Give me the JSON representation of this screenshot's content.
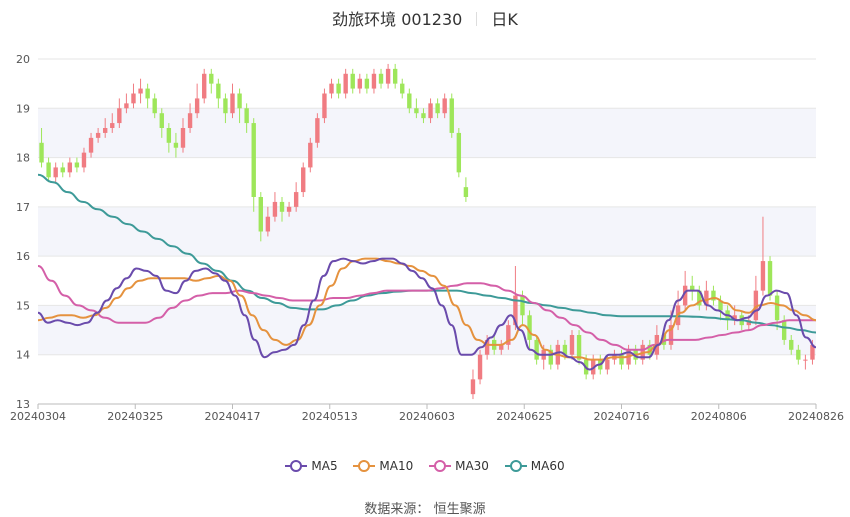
{
  "title": {
    "name": "劲旅环境 001230",
    "period": "日K"
  },
  "source": {
    "label": "数据来源：",
    "value": "恒生聚源"
  },
  "chart_data": {
    "type": "candlestick",
    "ylim": [
      13,
      20
    ],
    "yticks": [
      13,
      14,
      15,
      16,
      17,
      18,
      19,
      20
    ],
    "xticks": [
      "20240304",
      "20240325",
      "20240417",
      "20240513",
      "20240603",
      "20240625",
      "20240716",
      "20240806",
      "20240826"
    ],
    "colors": {
      "up": "#f07c82",
      "down": "#9ee65a",
      "ma5": "#6a4bac",
      "ma10": "#e5923e",
      "ma30": "#d45fa8",
      "ma60": "#3d9a98"
    },
    "legend": [
      "MA5",
      "MA10",
      "MA30",
      "MA60"
    ],
    "candles": [
      [
        18.3,
        17.9,
        18.6,
        17.8
      ],
      [
        17.9,
        17.6,
        18.0,
        17.5
      ],
      [
        17.6,
        17.8,
        17.9,
        17.5
      ],
      [
        17.8,
        17.7,
        17.9,
        17.6
      ],
      [
        17.7,
        17.9,
        18.0,
        17.6
      ],
      [
        17.9,
        17.8,
        18.0,
        17.7
      ],
      [
        17.8,
        18.1,
        18.2,
        17.7
      ],
      [
        18.1,
        18.4,
        18.5,
        18.0
      ],
      [
        18.4,
        18.5,
        18.6,
        18.3
      ],
      [
        18.5,
        18.6,
        18.8,
        18.4
      ],
      [
        18.6,
        18.7,
        18.9,
        18.5
      ],
      [
        18.7,
        19.0,
        19.2,
        18.6
      ],
      [
        19.0,
        19.1,
        19.3,
        18.9
      ],
      [
        19.1,
        19.3,
        19.5,
        19.0
      ],
      [
        19.3,
        19.4,
        19.6,
        19.1
      ],
      [
        19.4,
        19.2,
        19.5,
        19.0
      ],
      [
        19.2,
        18.9,
        19.3,
        18.8
      ],
      [
        18.9,
        18.6,
        19.0,
        18.4
      ],
      [
        18.6,
        18.3,
        18.7,
        18.1
      ],
      [
        18.3,
        18.2,
        18.5,
        18.0
      ],
      [
        18.2,
        18.6,
        18.8,
        18.1
      ],
      [
        18.6,
        18.9,
        19.1,
        18.5
      ],
      [
        18.9,
        19.2,
        19.5,
        18.8
      ],
      [
        19.2,
        19.7,
        19.8,
        19.1
      ],
      [
        19.7,
        19.5,
        19.8,
        19.3
      ],
      [
        19.5,
        19.2,
        19.6,
        19.0
      ],
      [
        19.2,
        18.9,
        19.3,
        18.7
      ],
      [
        18.9,
        19.3,
        19.5,
        18.8
      ],
      [
        19.3,
        19.0,
        19.4,
        18.7
      ],
      [
        19.0,
        18.7,
        19.1,
        18.5
      ],
      [
        18.7,
        17.2,
        18.8,
        16.9
      ],
      [
        17.2,
        16.5,
        17.3,
        16.3
      ],
      [
        16.5,
        16.8,
        17.0,
        16.4
      ],
      [
        16.8,
        17.1,
        17.3,
        16.7
      ],
      [
        17.1,
        16.9,
        17.2,
        16.7
      ],
      [
        16.9,
        17.0,
        17.1,
        16.8
      ],
      [
        17.0,
        17.3,
        17.5,
        16.9
      ],
      [
        17.3,
        17.8,
        17.9,
        17.2
      ],
      [
        17.8,
        18.3,
        18.4,
        17.7
      ],
      [
        18.3,
        18.8,
        18.9,
        18.2
      ],
      [
        18.8,
        19.3,
        19.4,
        18.7
      ],
      [
        19.3,
        19.5,
        19.6,
        19.2
      ],
      [
        19.5,
        19.3,
        19.6,
        19.2
      ],
      [
        19.3,
        19.7,
        19.8,
        19.2
      ],
      [
        19.7,
        19.4,
        19.8,
        19.3
      ],
      [
        19.4,
        19.6,
        19.7,
        19.3
      ],
      [
        19.6,
        19.4,
        19.7,
        19.3
      ],
      [
        19.4,
        19.7,
        19.8,
        19.3
      ],
      [
        19.7,
        19.5,
        19.8,
        19.4
      ],
      [
        19.5,
        19.8,
        19.9,
        19.4
      ],
      [
        19.8,
        19.5,
        19.9,
        19.4
      ],
      [
        19.5,
        19.3,
        19.6,
        19.2
      ],
      [
        19.3,
        19.0,
        19.4,
        18.9
      ],
      [
        19.0,
        18.9,
        19.2,
        18.8
      ],
      [
        18.9,
        18.8,
        19.0,
        18.7
      ],
      [
        18.8,
        19.1,
        19.2,
        18.7
      ],
      [
        19.1,
        18.9,
        19.2,
        18.8
      ],
      [
        18.9,
        19.2,
        19.3,
        18.8
      ],
      [
        19.2,
        18.5,
        19.3,
        18.4
      ],
      [
        18.5,
        17.7,
        18.6,
        17.6
      ],
      [
        17.4,
        17.2,
        17.6,
        17.1
      ],
      [
        13.2,
        13.5,
        13.7,
        13.1
      ],
      [
        13.5,
        14.0,
        14.1,
        13.4
      ],
      [
        14.0,
        14.3,
        14.4,
        13.9
      ],
      [
        14.3,
        14.1,
        14.4,
        14.0
      ],
      [
        14.1,
        14.2,
        14.3,
        14.0
      ],
      [
        14.2,
        14.6,
        14.7,
        14.1
      ],
      [
        14.6,
        15.2,
        15.8,
        14.5
      ],
      [
        15.2,
        14.8,
        15.3,
        14.6
      ],
      [
        14.8,
        14.3,
        14.9,
        14.1
      ],
      [
        14.3,
        13.9,
        14.4,
        13.8
      ],
      [
        13.9,
        14.1,
        14.2,
        13.7
      ],
      [
        14.1,
        13.8,
        14.2,
        13.7
      ],
      [
        13.8,
        14.2,
        14.3,
        13.7
      ],
      [
        14.2,
        14.0,
        14.3,
        13.9
      ],
      [
        14.0,
        14.4,
        14.5,
        13.9
      ],
      [
        14.4,
        13.9,
        14.5,
        13.8
      ],
      [
        13.9,
        13.6,
        14.0,
        13.5
      ],
      [
        13.6,
        13.9,
        14.0,
        13.5
      ],
      [
        13.9,
        13.7,
        14.0,
        13.6
      ],
      [
        13.7,
        13.9,
        14.0,
        13.6
      ],
      [
        13.9,
        14.0,
        14.1,
        13.8
      ],
      [
        14.0,
        13.8,
        14.1,
        13.7
      ],
      [
        13.8,
        14.1,
        14.2,
        13.7
      ],
      [
        14.1,
        13.9,
        14.2,
        13.8
      ],
      [
        13.9,
        14.2,
        14.3,
        13.8
      ],
      [
        14.2,
        14.0,
        14.3,
        13.9
      ],
      [
        14.0,
        14.4,
        14.6,
        13.9
      ],
      [
        14.4,
        14.2,
        14.5,
        14.1
      ],
      [
        14.2,
        14.6,
        14.9,
        14.1
      ],
      [
        14.6,
        15.0,
        15.3,
        14.5
      ],
      [
        15.0,
        15.4,
        15.7,
        14.9
      ],
      [
        15.4,
        15.3,
        15.6,
        15.1
      ],
      [
        15.3,
        15.0,
        15.4,
        14.9
      ],
      [
        15.0,
        15.3,
        15.5,
        14.9
      ],
      [
        15.3,
        15.1,
        15.4,
        15.0
      ],
      [
        15.1,
        14.9,
        15.2,
        14.7
      ],
      [
        14.9,
        14.7,
        15.0,
        14.5
      ],
      [
        14.7,
        14.8,
        15.0,
        14.6
      ],
      [
        14.8,
        14.6,
        14.9,
        14.5
      ],
      [
        14.6,
        14.7,
        14.8,
        14.5
      ],
      [
        14.7,
        15.3,
        15.6,
        14.6
      ],
      [
        15.3,
        15.9,
        16.8,
        15.2
      ],
      [
        15.9,
        15.2,
        16.0,
        15.1
      ],
      [
        15.2,
        14.7,
        15.3,
        14.5
      ],
      [
        14.7,
        14.3,
        14.8,
        14.2
      ],
      [
        14.3,
        14.1,
        14.4,
        14.0
      ],
      [
        14.1,
        13.9,
        14.2,
        13.8
      ],
      [
        13.9,
        13.9,
        14.0,
        13.7
      ],
      [
        13.9,
        14.2,
        14.3,
        13.8
      ]
    ],
    "ma5": [
      14.85,
      14.65,
      14.7,
      14.65,
      14.6,
      14.65,
      14.85,
      15.1,
      15.35,
      15.55,
      15.75,
      15.7,
      15.6,
      15.3,
      15.25,
      15.5,
      15.7,
      15.75,
      15.65,
      15.5,
      15.2,
      14.8,
      14.3,
      13.95,
      14.05,
      14.1,
      14.2,
      14.6,
      15.1,
      15.6,
      15.9,
      15.95,
      15.9,
      15.85,
      15.9,
      15.95,
      15.95,
      15.85,
      15.7,
      15.55,
      15.35,
      15.0,
      14.6,
      14.0,
      14.0,
      14.15,
      14.35,
      14.6,
      14.8,
      14.5,
      14.1,
      14.0,
      14.0,
      14.05,
      13.95,
      13.85,
      13.7,
      13.8,
      14.0,
      14.0,
      14.05,
      13.95,
      13.95,
      14.2,
      14.7,
      15.1,
      15.3,
      15.3,
      15.0,
      14.9,
      14.8,
      14.7,
      14.75,
      14.9,
      15.2,
      15.3,
      15.25,
      14.8,
      14.35,
      14.15
    ],
    "ma10": [
      14.7,
      14.75,
      14.8,
      14.8,
      14.75,
      14.8,
      14.95,
      15.15,
      15.35,
      15.5,
      15.55,
      15.55,
      15.55,
      15.55,
      15.5,
      15.55,
      15.6,
      15.5,
      15.2,
      14.8,
      14.5,
      14.3,
      14.2,
      14.3,
      14.6,
      15.0,
      15.4,
      15.75,
      15.9,
      15.95,
      15.95,
      15.9,
      15.85,
      15.8,
      15.7,
      15.6,
      15.4,
      15.0,
      14.6,
      14.3,
      14.2,
      14.2,
      14.3,
      14.6,
      14.4,
      14.1,
      14.0,
      13.95,
      13.95,
      13.9,
      13.9,
      13.95,
      13.95,
      14.0,
      14.05,
      14.2,
      14.5,
      14.85,
      15.0,
      15.1,
      15.15,
      15.05,
      14.9,
      14.85,
      15.0,
      15.05,
      15.0,
      14.9,
      14.8,
      14.7
    ],
    "ma30": [
      15.8,
      15.5,
      15.2,
      15.0,
      14.9,
      14.75,
      14.65,
      14.65,
      14.65,
      14.75,
      14.95,
      15.1,
      15.2,
      15.25,
      15.25,
      15.3,
      15.25,
      15.2,
      15.15,
      15.1,
      15.1,
      15.1,
      15.15,
      15.15,
      15.2,
      15.25,
      15.3,
      15.3,
      15.3,
      15.3,
      15.35,
      15.4,
      15.45,
      15.45,
      15.4,
      15.3,
      15.2,
      15.05,
      14.9,
      14.75,
      14.6,
      14.45,
      14.3,
      14.2,
      14.1,
      14.1,
      14.2,
      14.3,
      14.3,
      14.3,
      14.35,
      14.4,
      14.45,
      14.5,
      14.6,
      14.65,
      14.7,
      14.7,
      14.7
    ],
    "ma60": [
      17.65,
      17.5,
      17.3,
      17.1,
      16.95,
      16.8,
      16.65,
      16.5,
      16.35,
      16.2,
      16.05,
      15.85,
      15.7,
      15.5,
      15.3,
      15.15,
      15.05,
      14.95,
      14.92,
      14.92,
      15.0,
      15.1,
      15.2,
      15.25,
      15.28,
      15.3,
      15.3,
      15.3,
      15.3,
      15.25,
      15.2,
      15.15,
      15.1,
      15.05,
      15.0,
      14.95,
      14.9,
      14.85,
      14.8,
      14.78,
      14.78,
      14.78,
      14.78,
      14.78,
      14.77,
      14.75,
      14.72,
      14.7,
      14.65,
      14.6,
      14.55,
      14.5,
      14.45
    ]
  }
}
